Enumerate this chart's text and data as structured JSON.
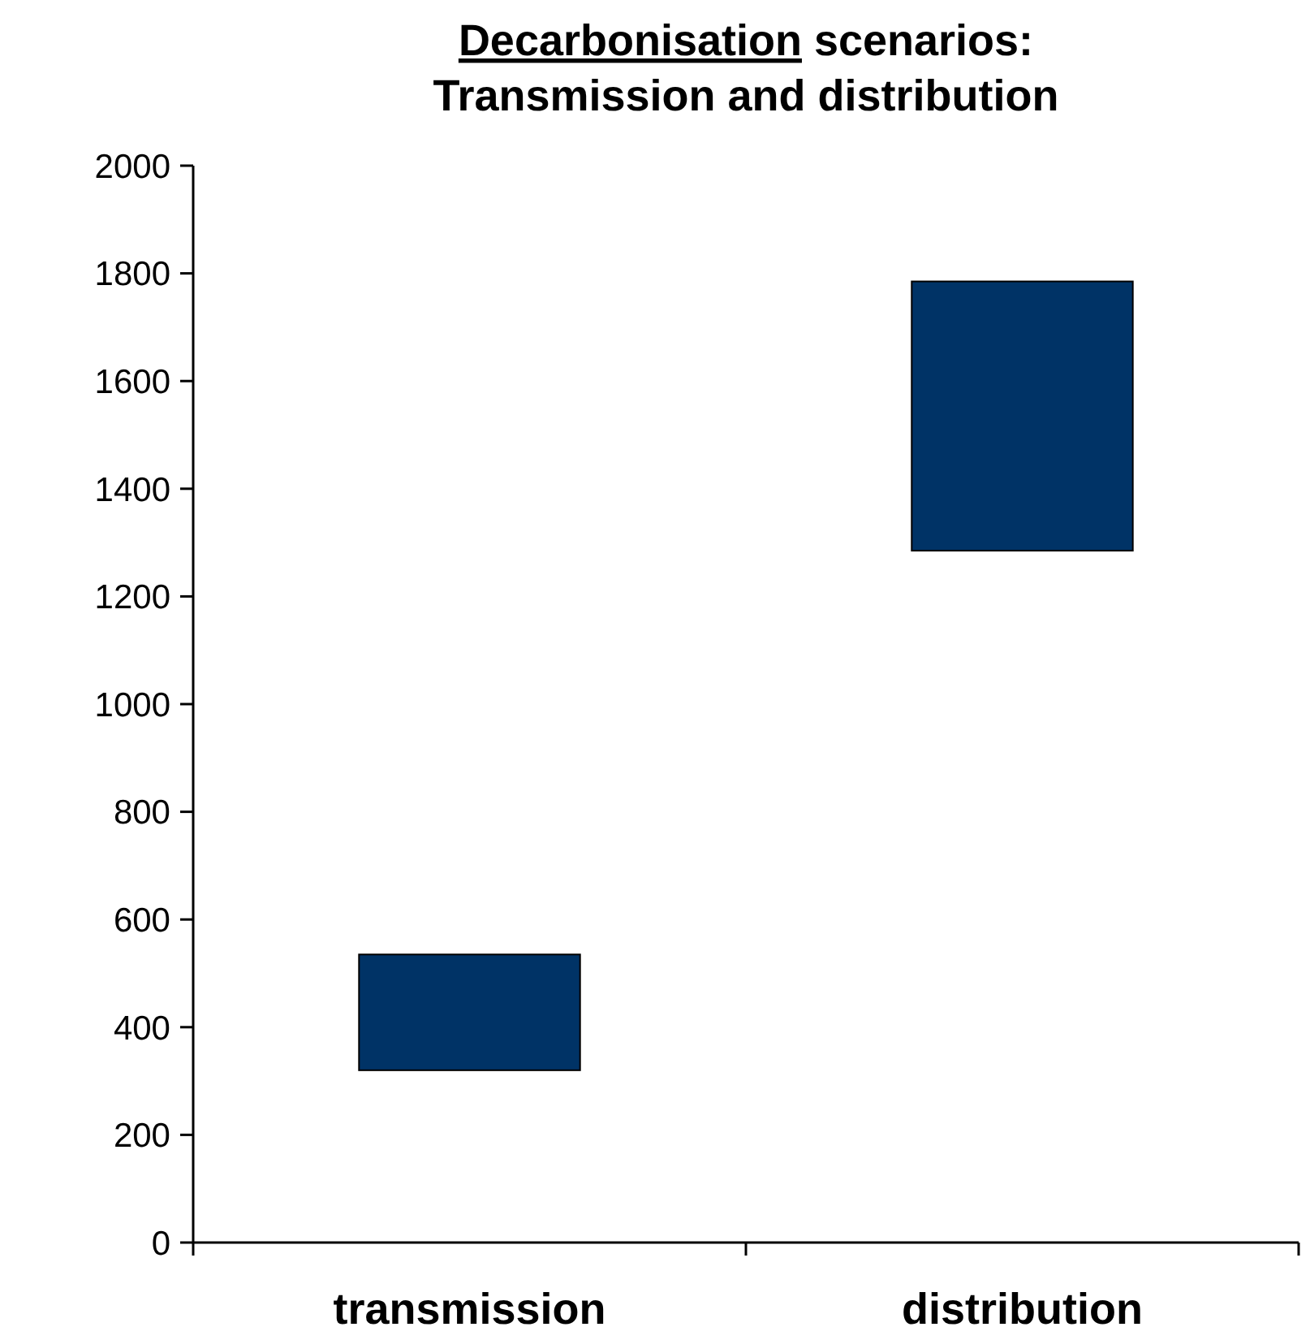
{
  "chart_data": {
    "type": "bar",
    "title": "Decarbonisation scenarios:\nTransmission and distribution",
    "categories": [
      "transmission",
      "distribution"
    ],
    "values": [
      215,
      500
    ],
    "base": [
      320,
      1285
    ],
    "color": "#003366",
    "ylim": [
      0,
      2000
    ],
    "yticks": [
      0,
      200,
      400,
      600,
      800,
      1000,
      1200,
      1400,
      1600,
      1800,
      2000
    ],
    "grid": false
  }
}
